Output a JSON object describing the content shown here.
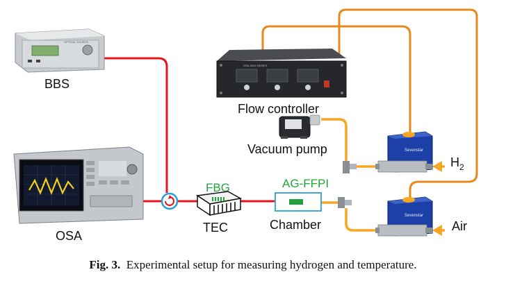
{
  "labels": {
    "bbs": "BBS",
    "osa": "OSA",
    "flow_controller": "Flow controller",
    "vacuum_pump": "Vacuum pump",
    "fbg": "FBG",
    "tec": "TEC",
    "ag_ffpi": "AG-FFPI",
    "chamber": "Chamber",
    "h2_base": "H",
    "h2_sub": "2",
    "air": "Air"
  },
  "device_text": {
    "bbs_panel": "OPTICAL SOURCE",
    "mfc_brand": "Sevenstar",
    "flow_controller_panel": "DSN-3000 SERIES"
  },
  "caption": {
    "prefix": "Fig. 3.",
    "text": "Experimental setup for measuring hydrogen and temperature."
  },
  "colors": {
    "fiber": "#e8141c",
    "gas_line": "#f5a623",
    "cable": "#e8891c",
    "label_green": "#22a33a",
    "chamber_outline": "#2b9fd8",
    "mfc_body": "#1c3fa8"
  }
}
